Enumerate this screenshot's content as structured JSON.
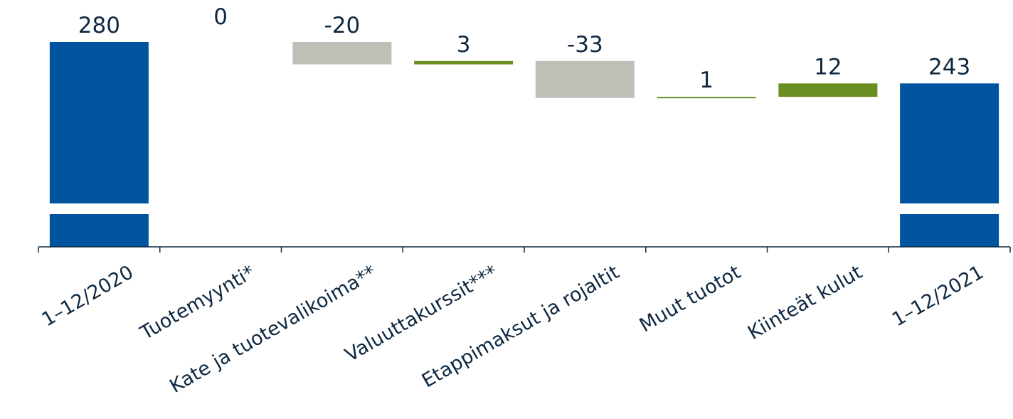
{
  "chart_data": {
    "type": "waterfall",
    "title": "",
    "xlabel": "",
    "ylabel": "",
    "axis_break": true,
    "categories": [
      "1–12/2020",
      "Tuotemyynti*",
      "Kate ja tuotevalikoima**",
      "Valuuttakurssit***",
      "Etappimaksut ja rojaltit",
      "Muut tuotot",
      "Kiinteät kulut",
      "1–12/2021"
    ],
    "values": [
      280,
      0,
      -20,
      3,
      -33,
      1,
      12,
      243
    ],
    "labels": [
      "280",
      "0",
      "-20",
      "3",
      "-33",
      "1",
      "12",
      "243"
    ],
    "kinds": [
      "total",
      "change",
      "change",
      "change",
      "change",
      "change",
      "change",
      "total"
    ],
    "colors": {
      "total": "#00549f",
      "increase": "#6b8e23",
      "decrease": "#bfbfb8",
      "axis": "#0e2841",
      "text": "#0e2841"
    }
  }
}
